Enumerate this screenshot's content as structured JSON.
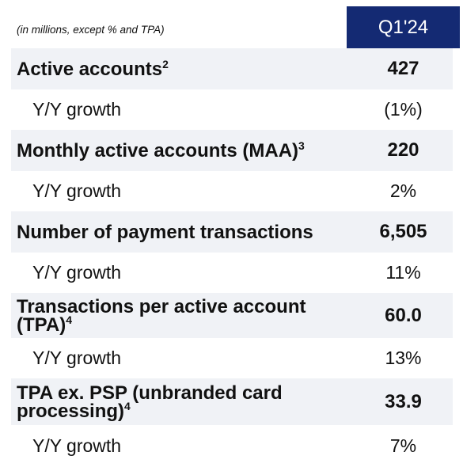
{
  "header": {
    "note": "(in millions, except % and TPA)",
    "period": "Q1'24"
  },
  "rows": [
    {
      "label": "Active accounts",
      "sup": "2",
      "value": "427"
    },
    {
      "label": "Y/Y growth",
      "value": "(1%)"
    },
    {
      "label": "Monthly active accounts (MAA)",
      "sup": "3",
      "value": "220"
    },
    {
      "label": "Y/Y growth",
      "value": "2%"
    },
    {
      "label": "Number of payment transactions",
      "value": "6,505"
    },
    {
      "label": "Y/Y growth",
      "value": "11%"
    },
    {
      "label_line1": "Transactions per active account",
      "label_line2": "(TPA)",
      "sup": "4",
      "value": "60.0"
    },
    {
      "label": "Y/Y growth",
      "value": "13%"
    },
    {
      "label_line1": "TPA ex. PSP (unbranded card",
      "label_line2": "processing)",
      "sup": "4",
      "value": "33.9"
    },
    {
      "label": "Y/Y growth",
      "value": "7%"
    }
  ],
  "colors": {
    "header_bg": "#142a73",
    "row_shade": "#f0f2f6"
  }
}
